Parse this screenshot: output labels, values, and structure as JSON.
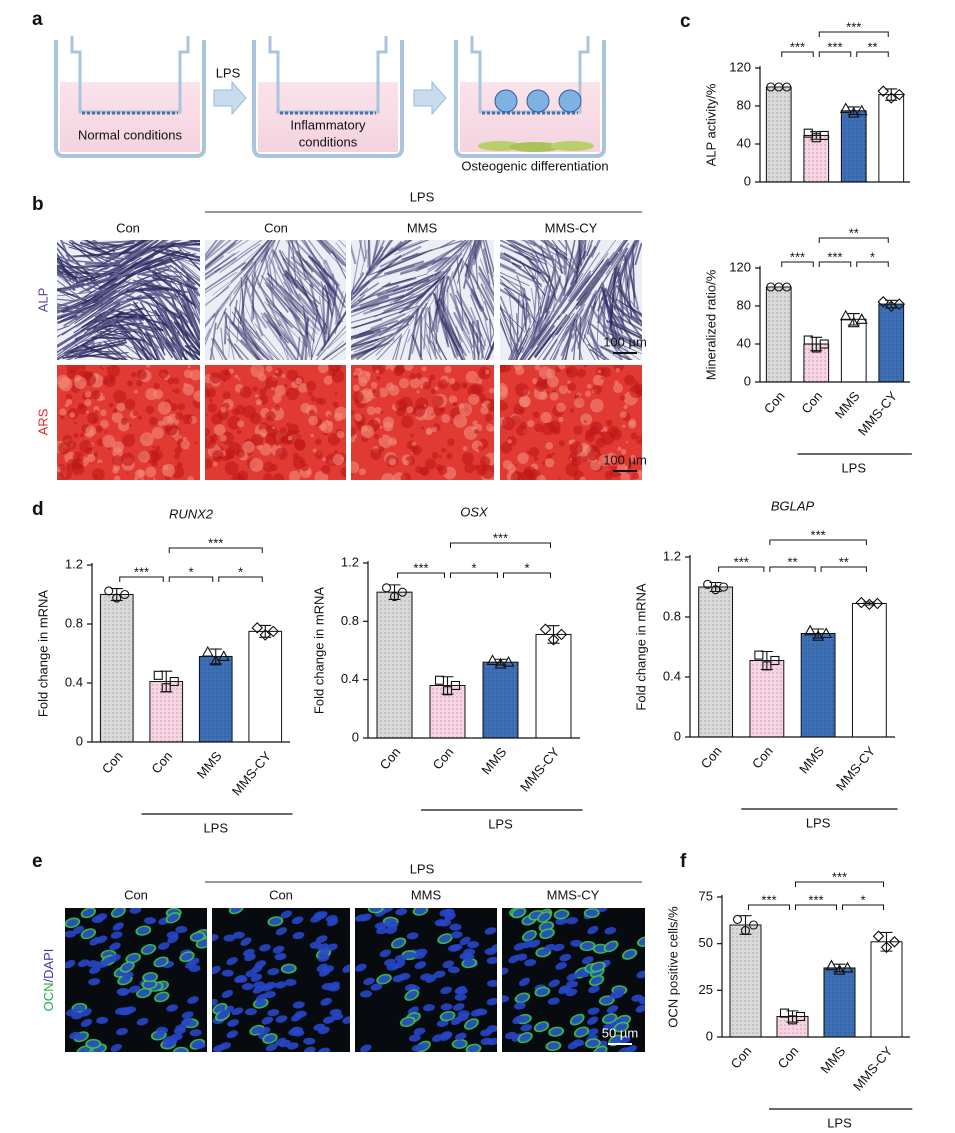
{
  "panel_labels": [
    "a",
    "b",
    "c",
    "d",
    "e",
    "f"
  ],
  "diagram": {
    "normal": "Normal conditions",
    "arrow": "LPS",
    "inflammatory": [
      "Inflammatory",
      "conditions"
    ],
    "osteogenic": "Osteogenic differentiation"
  },
  "staining": {
    "group": "LPS",
    "columns": [
      "Con",
      "Con",
      "MMS",
      "MMS-CY"
    ],
    "rows": [
      "ALP",
      "ARS"
    ],
    "scale_bar": "100 µm"
  },
  "immunofluorescence": {
    "group": "LPS",
    "columns": [
      "Con",
      "Con",
      "MMS",
      "MMS-CY"
    ],
    "row_label": [
      "OCN",
      "/",
      "DAPI"
    ],
    "scale_bar": "50 µm"
  },
  "chart_data": [
    {
      "type": "bar",
      "y_label": "ALP activity/%",
      "values": [
        100,
        49,
        75,
        92
      ],
      "errors": [
        0,
        4,
        4,
        6
      ],
      "colors": [
        "#d9d9d9",
        "#f7d3e4",
        "#3d6fb6",
        "#ffffff"
      ],
      "ylim": [
        0,
        120
      ],
      "yticks": [
        0,
        40,
        80,
        120
      ],
      "significance": [
        {
          "from": 0,
          "to": 1,
          "label": "***"
        },
        {
          "from": 1,
          "to": 2,
          "label": "***"
        },
        {
          "from": 2,
          "to": 3,
          "label": "**"
        },
        {
          "from": 1,
          "to": 3,
          "label": "***"
        }
      ]
    },
    {
      "type": "bar",
      "y_label": "Mineralized ratio/%",
      "categories": [
        "Con",
        "Con",
        "MMS",
        "MMS-CY"
      ],
      "values": [
        100,
        40,
        66,
        82
      ],
      "errors": [
        0,
        7,
        6,
        4
      ],
      "colors": [
        "#d9d9d9",
        "#f7d3e4",
        "#ffffff",
        "#3d6fb6"
      ],
      "ylim": [
        0,
        120
      ],
      "yticks": [
        0,
        40,
        80,
        120
      ],
      "significance": [
        {
          "from": 0,
          "to": 1,
          "label": "***"
        },
        {
          "from": 1,
          "to": 2,
          "label": "***"
        },
        {
          "from": 2,
          "to": 3,
          "label": "*"
        },
        {
          "from": 1,
          "to": 3,
          "label": "**"
        }
      ],
      "group_label": "LPS"
    },
    {
      "type": "bar",
      "title": "RUNX2",
      "y_label": "Fold change in mRNA",
      "categories": [
        "Con",
        "Con",
        "MMS",
        "MMS-CY"
      ],
      "values": [
        1.0,
        0.41,
        0.58,
        0.75
      ],
      "errors": [
        0.04,
        0.07,
        0.05,
        0.04
      ],
      "colors": [
        "#d9d9d9",
        "#f7d3e4",
        "#3d6fb6",
        "#ffffff"
      ],
      "ylim": [
        0,
        1.2
      ],
      "yticks": [
        0,
        0.4,
        0.8,
        1.2
      ],
      "significance": [
        {
          "from": 0,
          "to": 1,
          "label": "***"
        },
        {
          "from": 1,
          "to": 2,
          "label": "*"
        },
        {
          "from": 2,
          "to": 3,
          "label": "*"
        },
        {
          "from": 1,
          "to": 3,
          "label": "***"
        }
      ],
      "group_label": "LPS"
    },
    {
      "type": "bar",
      "title": "OSX",
      "y_label": "Fold change in mRNA",
      "categories": [
        "Con",
        "Con",
        "MMS",
        "MMS-CY"
      ],
      "values": [
        1.0,
        0.36,
        0.52,
        0.71
      ],
      "errors": [
        0.05,
        0.06,
        0.02,
        0.06
      ],
      "colors": [
        "#d9d9d9",
        "#f7d3e4",
        "#3d6fb6",
        "#ffffff"
      ],
      "ylim": [
        0,
        1.2
      ],
      "yticks": [
        0,
        0.4,
        0.8,
        1.2
      ],
      "significance": [
        {
          "from": 0,
          "to": 1,
          "label": "***"
        },
        {
          "from": 1,
          "to": 2,
          "label": "*"
        },
        {
          "from": 2,
          "to": 3,
          "label": "*"
        },
        {
          "from": 1,
          "to": 3,
          "label": "***"
        }
      ],
      "group_label": "LPS"
    },
    {
      "type": "bar",
      "title": "BGLAP",
      "y_label": "Fold change in mRNA",
      "categories": [
        "Con",
        "Con",
        "MMS",
        "MMS-CY"
      ],
      "values": [
        1.0,
        0.51,
        0.69,
        0.89
      ],
      "errors": [
        0.03,
        0.06,
        0.03,
        0.01
      ],
      "colors": [
        "#d9d9d9",
        "#f7d3e4",
        "#3d6fb6",
        "#ffffff"
      ],
      "ylim": [
        0,
        1.2
      ],
      "yticks": [
        0,
        0.4,
        0.8,
        1.2
      ],
      "significance": [
        {
          "from": 0,
          "to": 1,
          "label": "***"
        },
        {
          "from": 1,
          "to": 2,
          "label": "**"
        },
        {
          "from": 2,
          "to": 3,
          "label": "**"
        },
        {
          "from": 1,
          "to": 3,
          "label": "***"
        }
      ],
      "group_label": "LPS"
    },
    {
      "type": "bar",
      "y_label": "OCN positive cells/%",
      "categories": [
        "Con",
        "Con",
        "MMS",
        "MMS-CY"
      ],
      "values": [
        60,
        11,
        37,
        51
      ],
      "errors": [
        5,
        3,
        2,
        5
      ],
      "colors": [
        "#d9d9d9",
        "#f7d3e4",
        "#3d6fb6",
        "#ffffff"
      ],
      "ylim": [
        0,
        75
      ],
      "yticks": [
        0,
        25,
        50,
        75
      ],
      "significance": [
        {
          "from": 0,
          "to": 1,
          "label": "***"
        },
        {
          "from": 1,
          "to": 2,
          "label": "***"
        },
        {
          "from": 2,
          "to": 3,
          "label": "*"
        },
        {
          "from": 1,
          "to": 3,
          "label": "***"
        }
      ],
      "group_label": "LPS"
    }
  ]
}
